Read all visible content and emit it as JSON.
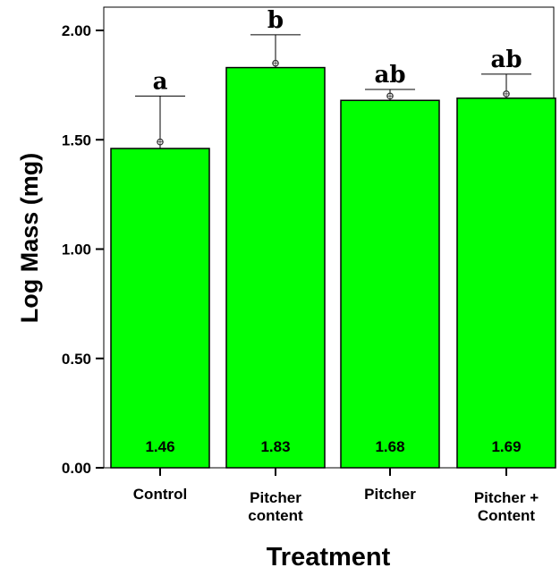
{
  "chart_data": {
    "type": "bar",
    "categories": [
      [
        "Control"
      ],
      [
        "Pitcher",
        "content"
      ],
      [
        "Pitcher"
      ],
      [
        "Pitcher +",
        "Content"
      ]
    ],
    "values": [
      1.46,
      1.83,
      1.68,
      1.69
    ],
    "value_labels": [
      "1.46",
      "1.83",
      "1.68",
      "1.69"
    ],
    "error_upper": [
      1.7,
      1.98,
      1.73,
      1.8
    ],
    "means_marker": [
      1.49,
      1.85,
      1.7,
      1.71
    ],
    "significance_letters": [
      "a",
      "b",
      "ab",
      "ab"
    ],
    "yticks": [
      "0.00",
      "0.50",
      "1.00",
      "1.50",
      "2.00"
    ],
    "ylim": [
      0,
      2.1
    ],
    "xlabel": "Treatment",
    "ylabel": "Log Mass (mg)",
    "bar_color": "#00ff00",
    "grid": false
  }
}
